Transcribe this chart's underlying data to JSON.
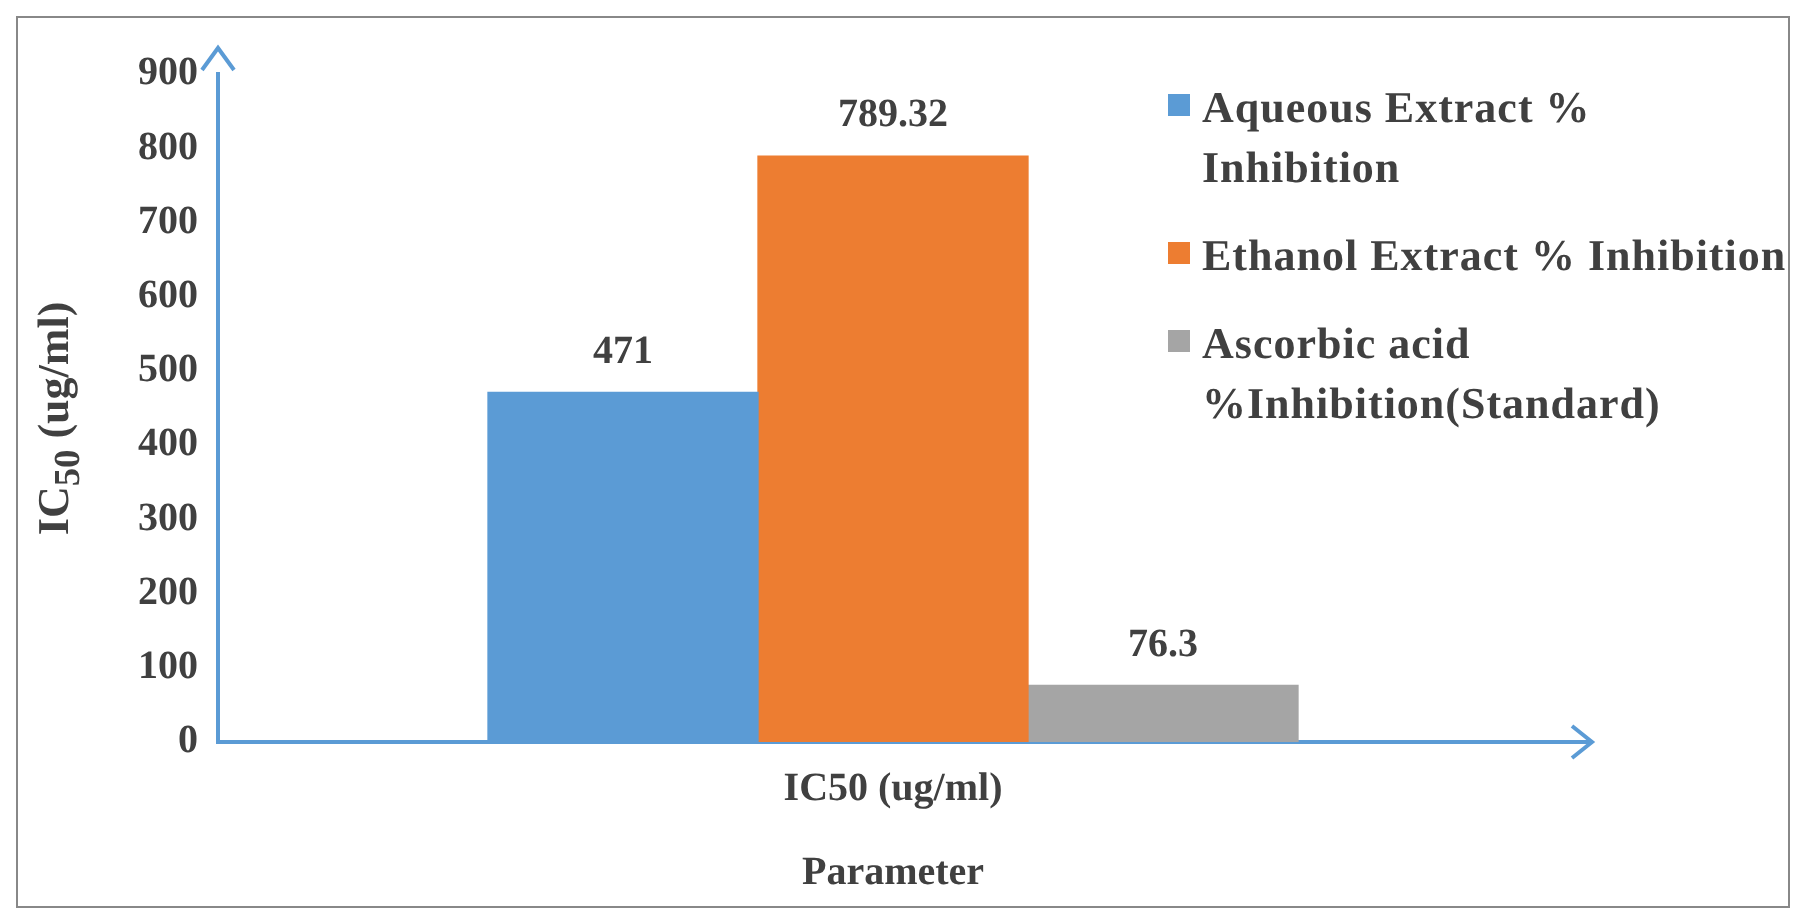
{
  "chart_data": {
    "type": "bar",
    "xlabel": "Parameter",
    "ylabel": "IC$_{50}$ (ug/ml)",
    "categories": [
      null,
      null,
      "IC50 (ug/ml)",
      null,
      null
    ],
    "series": [
      {
        "name": "Aqueous Extract % Inhibition",
        "color": "#5b9bd5",
        "values": [
          null,
          471,
          null,
          null,
          null
        ]
      },
      {
        "name": "Ethanol Extract % Inhibition",
        "color": "#ed7d31",
        "values": [
          null,
          null,
          789.32,
          null,
          null
        ]
      },
      {
        "name": "Ascorbic acid %Inhibition(Standard)",
        "color": "#a5a5a5",
        "values": [
          null,
          null,
          null,
          76.3,
          null
        ]
      }
    ],
    "ylim": [
      0,
      900
    ],
    "yticks": [
      0,
      100,
      200,
      300,
      400,
      500,
      600,
      700,
      800,
      900
    ],
    "grid": false,
    "legend": "right",
    "data_labels": true
  }
}
